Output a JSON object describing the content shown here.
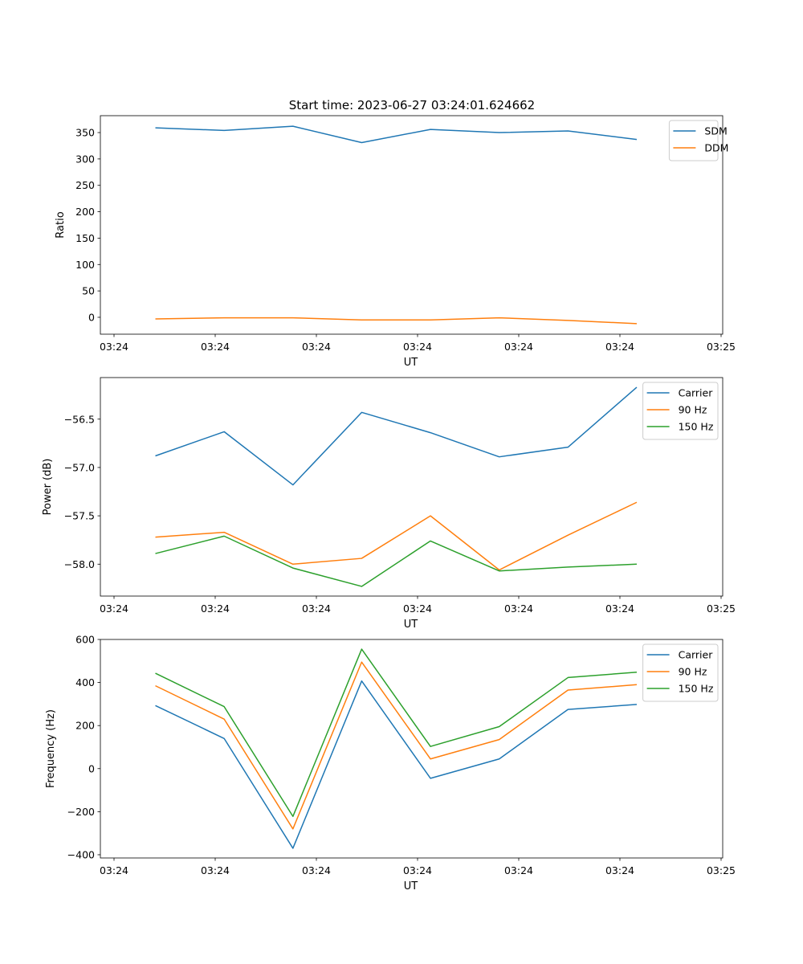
{
  "figure": {
    "title": "Start time: 2023-06-27 03:24:01.624662",
    "x_tick_labels": [
      "03:24",
      "03:24",
      "03:24",
      "03:24",
      "03:24",
      "03:24",
      "03:25"
    ]
  },
  "chart_data": [
    {
      "type": "line",
      "title": "Start time: 2023-06-27 03:24:01.624662",
      "xlabel": "UT",
      "ylabel": "Ratio",
      "x": [
        1,
        2,
        3,
        4,
        5,
        6,
        7,
        8
      ],
      "xlim": [
        0.2,
        9.25
      ],
      "ylim": [
        -32,
        382
      ],
      "yticks": [
        0,
        50,
        100,
        150,
        200,
        250,
        300,
        350
      ],
      "ytick_labels": [
        "0",
        "50",
        "100",
        "150",
        "200",
        "250",
        "300",
        "350"
      ],
      "legend_position": "top-right",
      "grid": false,
      "series": [
        {
          "name": "SDM",
          "color": "#1f77b4",
          "values": [
            359,
            354,
            362,
            331,
            356,
            350,
            353,
            337
          ]
        },
        {
          "name": "DDM",
          "color": "#ff7f0e",
          "values": [
            -3,
            -1,
            -1,
            -5,
            -5,
            -1,
            -6,
            -12
          ]
        }
      ]
    },
    {
      "type": "line",
      "xlabel": "UT",
      "ylabel": "Power (dB)",
      "x": [
        1,
        2,
        3,
        4,
        5,
        6,
        7,
        8
      ],
      "xlim": [
        0.2,
        9.25
      ],
      "ylim": [
        -58.33,
        -56.07
      ],
      "yticks": [
        -58.0,
        -57.5,
        -57.0,
        -56.5
      ],
      "ytick_labels": [
        "−58.0",
        "−57.5",
        "−57.0",
        "−56.5"
      ],
      "legend_position": "top-right",
      "grid": false,
      "series": [
        {
          "name": "Carrier",
          "color": "#1f77b4",
          "values": [
            -56.88,
            -56.63,
            -57.18,
            -56.43,
            -56.64,
            -56.89,
            -56.79,
            -56.17
          ]
        },
        {
          "name": "90 Hz",
          "color": "#ff7f0e",
          "values": [
            -57.72,
            -57.67,
            -58.0,
            -57.94,
            -57.5,
            -58.06,
            -57.7,
            -57.36
          ]
        },
        {
          "name": "150 Hz",
          "color": "#2ca02c",
          "values": [
            -57.89,
            -57.71,
            -58.04,
            -58.23,
            -57.76,
            -58.07,
            -58.03,
            -58.0
          ]
        }
      ]
    },
    {
      "type": "line",
      "xlabel": "UT",
      "ylabel": "Frequency (Hz)",
      "x": [
        1,
        2,
        3,
        4,
        5,
        6,
        7,
        8
      ],
      "xlim": [
        0.2,
        9.25
      ],
      "ylim": [
        -415,
        600
      ],
      "yticks": [
        -400,
        -200,
        0,
        200,
        400,
        600
      ],
      "ytick_labels": [
        "−400",
        "−200",
        "0",
        "200",
        "400",
        "600"
      ],
      "legend_position": "top-right",
      "grid": false,
      "series": [
        {
          "name": "Carrier",
          "color": "#1f77b4",
          "values": [
            293,
            140,
            -370,
            407,
            -45,
            45,
            275,
            298
          ]
        },
        {
          "name": "90 Hz",
          "color": "#ff7f0e",
          "values": [
            385,
            230,
            -280,
            495,
            45,
            135,
            365,
            390
          ]
        },
        {
          "name": "150 Hz",
          "color": "#2ca02c",
          "values": [
            443,
            288,
            -222,
            555,
            103,
            195,
            423,
            448
          ]
        }
      ]
    }
  ]
}
